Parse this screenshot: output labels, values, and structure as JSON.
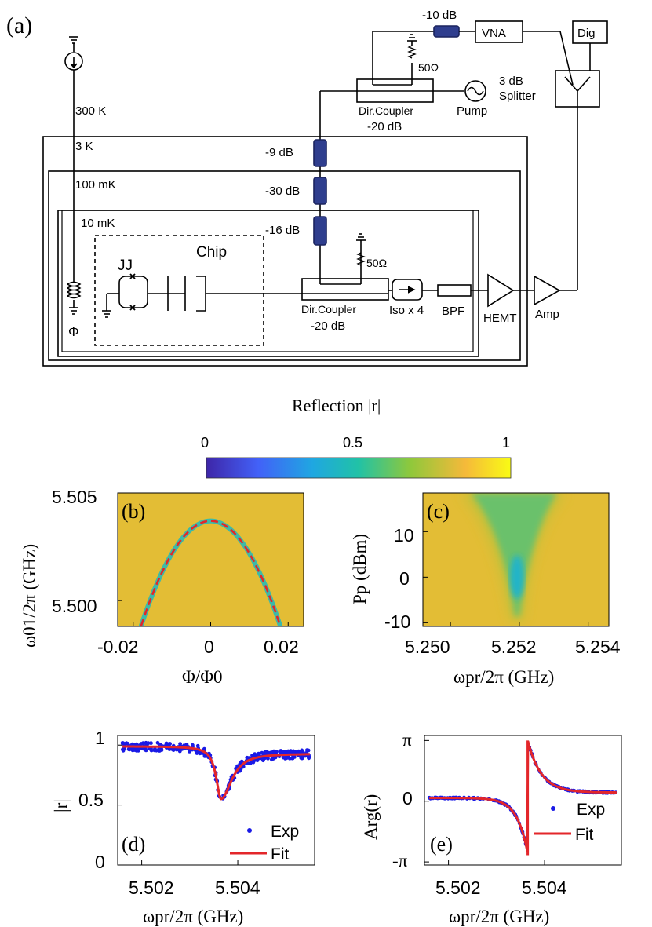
{
  "panel_a": {
    "label": "(a)",
    "temps": [
      "300 K",
      "3 K",
      "100 mK",
      "10 mK"
    ],
    "attenuators": [
      "-10 dB",
      "-9 dB",
      "-30 dB",
      "-16 dB"
    ],
    "instruments": {
      "vna": "VNA",
      "dig": "Dig",
      "pump": "Pump"
    },
    "splitter": [
      "3 dB",
      "Splitter"
    ],
    "coupler_top": [
      "Dir.Coupler",
      "-20 dB"
    ],
    "coupler_bottom": [
      "Dir.Coupler",
      "-20 dB"
    ],
    "load_top": "50Ω",
    "load_bottom": "50Ω",
    "chip": "Chip",
    "jj": "JJ",
    "flux": "Φ",
    "iso": "Iso x 4",
    "bpf": "BPF",
    "hemt": "HEMT",
    "amp": "Amp"
  },
  "colorbar": {
    "title": "Reflection |r|",
    "ticks": [
      "0",
      "0.5",
      "1"
    ],
    "colors": [
      "#3e26a8",
      "#4261f8",
      "#1fa7e1",
      "#21c2a6",
      "#8fc83b",
      "#f5b93a",
      "#f9fb15"
    ]
  },
  "chart_data": [
    {
      "panel": "(b)",
      "type": "heatmap",
      "xlabel": "Φ/Φ0",
      "ylabel": "ω01/2π (GHz)",
      "xticks": [
        "-0.02",
        "0",
        "0.02"
      ],
      "yticks": [
        "5.505",
        "5.500"
      ],
      "xlim": [
        -0.024,
        0.024
      ],
      "ylim": [
        5.4988,
        5.505
      ],
      "fit_curve": {
        "style": "red-dashed",
        "peak": [
          0,
          5.5037
        ],
        "edges": [
          [
            -0.018,
            5.4988
          ],
          [
            0.018,
            5.4988
          ]
        ]
      }
    },
    {
      "panel": "(c)",
      "type": "heatmap",
      "xlabel": "ωpr/2π (GHz)",
      "ylabel": "Pp (dBm)",
      "xticks": [
        "5.250",
        "5.252",
        "5.254"
      ],
      "yticks": [
        "10",
        "0",
        "-10"
      ],
      "xlim": [
        5.2492,
        5.2546
      ],
      "ylim": [
        -10.8,
        18.5
      ],
      "dip_center": 5.252
    },
    {
      "panel": "(d)",
      "type": "scatter",
      "xlabel": "ωpr/2π (GHz)",
      "ylabel": "|r|",
      "xticks": [
        "5.502",
        "5.504"
      ],
      "yticks": [
        "1",
        "0.5",
        "0"
      ],
      "xlim": [
        5.5015,
        5.5056
      ],
      "ylim": [
        0,
        1.08
      ],
      "legend": [
        "Exp",
        "Fit"
      ],
      "resonance": 5.50365,
      "min_value": 0.55,
      "baseline_left": 0.99,
      "baseline_right": 0.93
    },
    {
      "panel": "(e)",
      "type": "scatter",
      "xlabel": "ωpr/2π (GHz)",
      "ylabel": "Arg(r)",
      "xticks": [
        "5.502",
        "5.504"
      ],
      "yticks": [
        "π",
        "0",
        "-π"
      ],
      "xlim": [
        5.5015,
        5.5056
      ],
      "ylim": [
        -3.3,
        3.4
      ],
      "legend": [
        "Exp",
        "Fit"
      ],
      "resonance": 5.50365
    }
  ]
}
